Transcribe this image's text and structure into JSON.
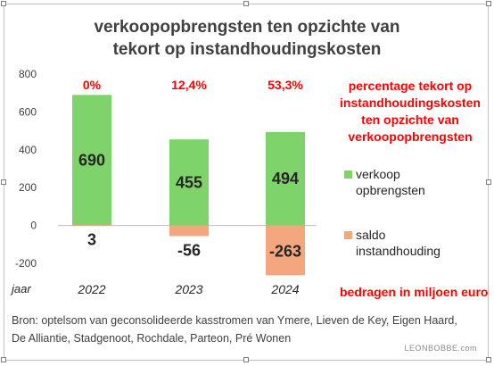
{
  "chart_data": {
    "type": "bar",
    "stacked": true,
    "title_lines": [
      "verkoopopbrengsten ten opzichte van",
      "tekort  op instandhoudingskosten"
    ],
    "categories": [
      "2022",
      "2023",
      "2024"
    ],
    "category_axis_label": "jaar",
    "ylim": [
      -200,
      800
    ],
    "yticks": [
      -200,
      0,
      200,
      400,
      600,
      800
    ],
    "series": [
      {
        "name": "verkoop opbrengsten",
        "legend_lines": [
          "verkoop",
          "opbrengsten"
        ],
        "color": "#7ed36b",
        "values": [
          690,
          455,
          494
        ],
        "labels": [
          "690",
          "455",
          "494"
        ]
      },
      {
        "name": "saldo instandhouding",
        "legend_lines": [
          "saldo",
          "instandhouding"
        ],
        "color": "#f4a67e",
        "values": [
          3,
          -56,
          -263
        ],
        "labels": [
          "3",
          "-56",
          "-263"
        ]
      }
    ],
    "percentages": [
      "0%",
      "12,4%",
      "53,3%"
    ],
    "annotation_lines": [
      "percentage tekort op",
      "instandhoudingskosten",
      "ten opzichte van",
      "verkoopopbrengsten"
    ],
    "units_note": "bedragen in miljoen euro",
    "source_lines": [
      "Bron: optelsom van geconsolideerde kasstromen van Ymere, Lieven de Key, Eigen Haard,",
      "De Alliantie, Stadgenoot, Rochdale, Parteon, Pré Wonen"
    ],
    "watermark": "LEONBOBBE.com",
    "grid": false,
    "legend_position": "right"
  }
}
